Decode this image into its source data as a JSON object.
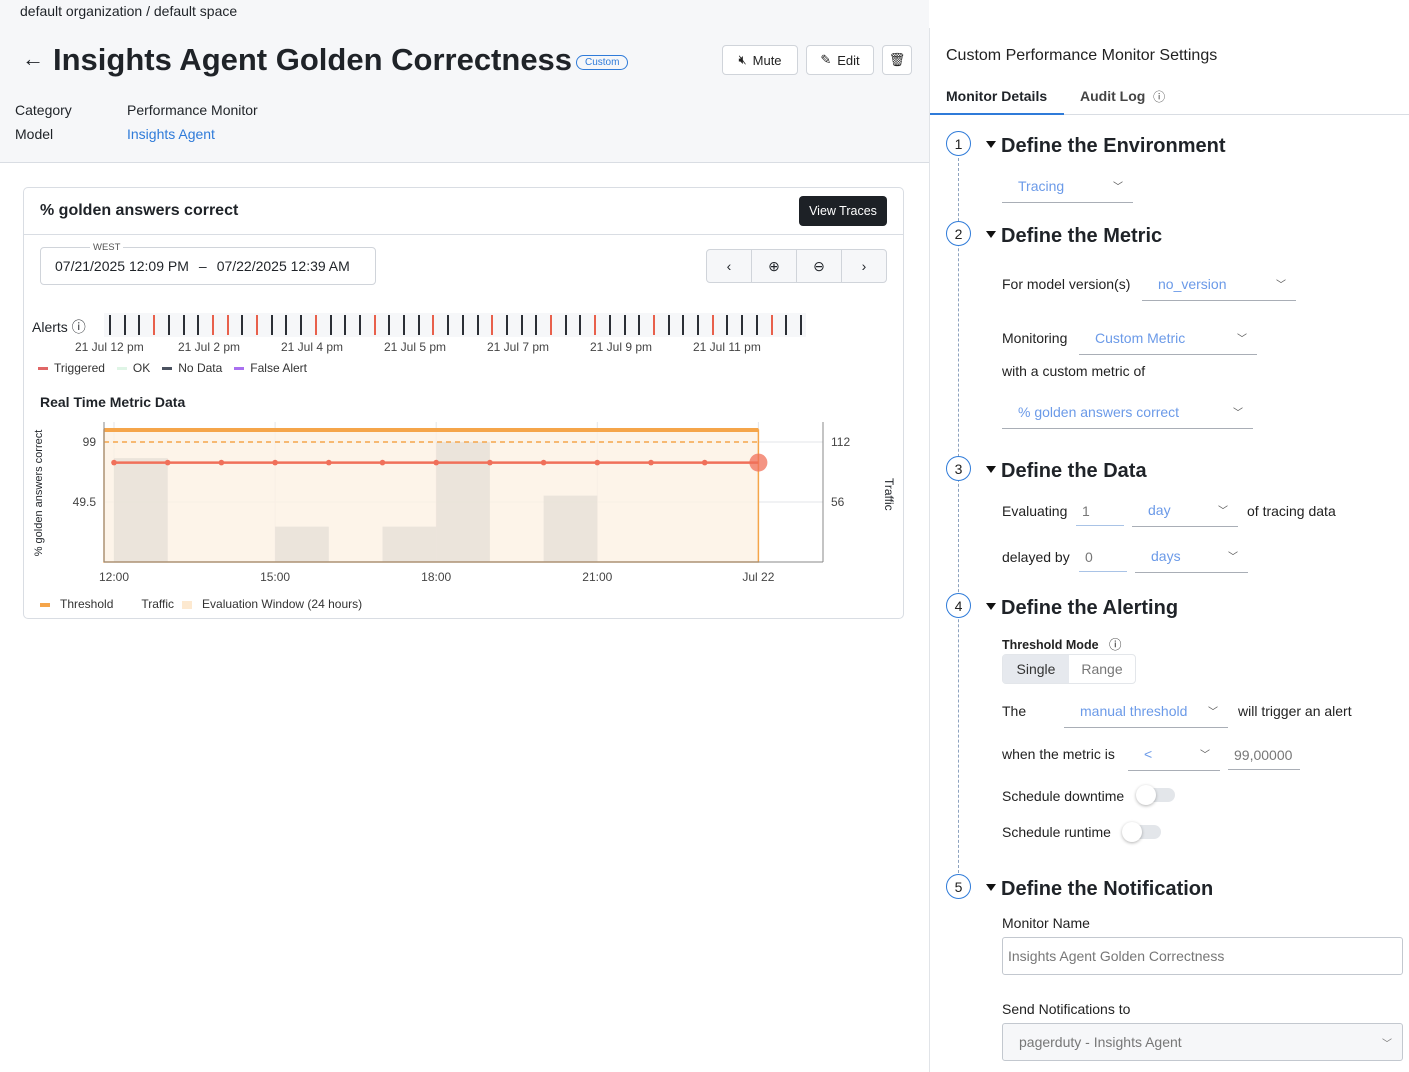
{
  "breadcrumb": "default organization / default space",
  "header": {
    "title": "Insights Agent Golden Correctness",
    "badge": "Custom",
    "mute_label": "Mute",
    "edit_label": "Edit",
    "meta": [
      {
        "label": "Category",
        "value": "Performance Monitor"
      },
      {
        "label": "Model",
        "value": "Insights Agent"
      }
    ]
  },
  "card": {
    "title": "% golden answers correct",
    "view_traces": "View Traces",
    "timezone": "WEST",
    "start": "07/21/2025 12:09 PM",
    "dash": "–",
    "end": "07/22/2025 12:39 AM",
    "alerts_label": "Alerts",
    "alert_ticks": [
      "nodata",
      "nodata",
      "nodata",
      "triggered",
      "nodata",
      "nodata",
      "nodata",
      "triggered",
      "triggered",
      "nodata",
      "triggered",
      "nodata",
      "nodata",
      "nodata",
      "triggered",
      "nodata",
      "nodata",
      "nodata",
      "triggered",
      "nodata",
      "nodata",
      "nodata",
      "triggered",
      "nodata",
      "nodata",
      "nodata",
      "triggered",
      "nodata",
      "nodata",
      "nodata",
      "triggered",
      "nodata",
      "nodata",
      "triggered",
      "nodata",
      "nodata",
      "nodata",
      "triggered",
      "nodata",
      "nodata",
      "nodata",
      "triggered",
      "nodata",
      "nodata",
      "nodata",
      "triggered",
      "nodata",
      "nodata"
    ],
    "alert_time_labels": [
      "21 Jul 12 pm",
      "21 Jul 2 pm",
      "21 Jul 4 pm",
      "21 Jul 5 pm",
      "21 Jul 7 pm",
      "21 Jul 9 pm",
      "21 Jul 11 pm"
    ],
    "alert_legend": [
      {
        "label": "Triggered",
        "color": "#e06666"
      },
      {
        "label": "OK",
        "color": "#dff5e6"
      },
      {
        "label": "No Data",
        "color": "#4b5260"
      },
      {
        "label": "False Alert",
        "color": "#a970f0"
      }
    ],
    "section_title": "Real Time Metric Data"
  },
  "chart_data": {
    "type": "line",
    "ylabel": "% golden answers correct",
    "y2label": "Traffic",
    "x_ticks": [
      "12:00",
      "15:00",
      "18:00",
      "21:00",
      "Jul 22"
    ],
    "y_ticks": [
      49.5,
      99
    ],
    "y2_ticks": [
      56,
      112
    ],
    "ylim": [
      0,
      115.5
    ],
    "y2lim": [
      0,
      130.7
    ],
    "series": [
      {
        "name": "metric",
        "type": "line",
        "color": "#f0705a",
        "x": [
          12,
          13,
          14,
          15,
          16,
          17,
          18,
          19,
          20,
          21,
          22,
          23,
          24
        ],
        "values": [
          82,
          82,
          82,
          82,
          82,
          82,
          82,
          82,
          82,
          82,
          82,
          82,
          82
        ]
      },
      {
        "name": "Traffic",
        "type": "bar",
        "color": "#e8e0d8",
        "x": [
          12,
          15,
          17,
          18,
          20
        ],
        "values": [
          97,
          33,
          33,
          112,
          62
        ]
      }
    ],
    "threshold": 99,
    "threshold_color": "#f5a54a",
    "evaluation_window": [
      12,
      24
    ],
    "legend": [
      {
        "label": "Threshold",
        "color": "#f5a54a"
      },
      {
        "label": "Traffic",
        "color": "#ffffff"
      },
      {
        "label": "Evaluation Window (24 hours)",
        "color": "#fde9d0"
      }
    ],
    "grid": true
  },
  "panel": {
    "title": "Custom Performance Monitor Settings",
    "tabs": [
      {
        "label": "Monitor Details",
        "active": true
      },
      {
        "label": "Audit Log"
      }
    ],
    "steps": [
      {
        "num": "1",
        "title": "Define the Environment"
      },
      {
        "num": "2",
        "title": "Define the Metric"
      },
      {
        "num": "3",
        "title": "Define the Data"
      },
      {
        "num": "4",
        "title": "Define the Alerting"
      },
      {
        "num": "5",
        "title": "Define the Notification"
      }
    ],
    "environment": "Tracing",
    "model_version_label": "For model version(s)",
    "model_version": "no_version",
    "monitoring_label": "Monitoring",
    "monitoring": "Custom Metric",
    "custom_metric_label": "with a custom metric of",
    "custom_metric": "% golden answers correct",
    "evaluating_label": "Evaluating",
    "evaluating_value": "1",
    "evaluating_unit": "day",
    "evaluating_suffix": "of tracing data",
    "delayed_label": "delayed by",
    "delayed_value": "0",
    "delayed_unit": "days",
    "threshold_mode_label": "Threshold Mode",
    "modes": [
      "Single",
      "Range"
    ],
    "the_label": "The",
    "threshold_type": "manual threshold",
    "trigger_suffix": "will trigger an alert",
    "when_label": "when the metric is",
    "operator": "<",
    "threshold_value": "99,00000",
    "downtime_label": "Schedule downtime",
    "runtime_label": "Schedule runtime",
    "monitor_name_label": "Monitor Name",
    "monitor_name": "Insights Agent Golden Correctness",
    "notify_label": "Send Notifications to",
    "notify": "pagerduty - Insights Agent"
  }
}
